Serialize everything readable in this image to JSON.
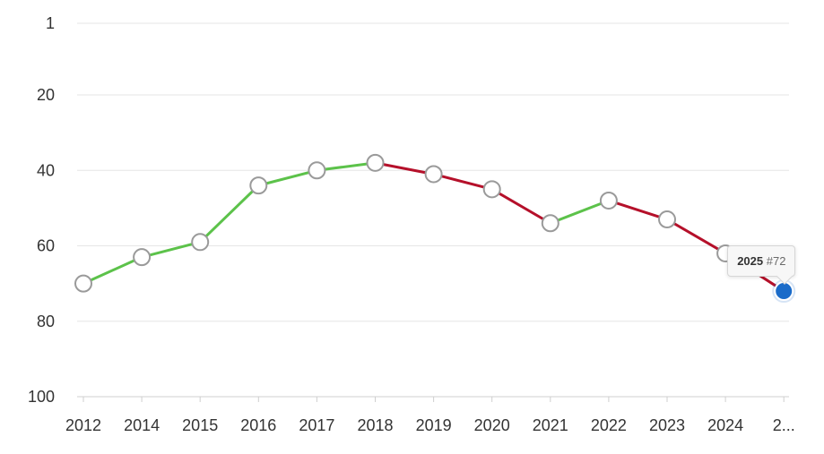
{
  "chart_data": {
    "type": "line",
    "title": "",
    "xlabel": "",
    "ylabel": "",
    "y_inverted": true,
    "ylim": [
      1,
      100
    ],
    "y_ticks": [
      "1",
      "20",
      "40",
      "60",
      "80",
      "100"
    ],
    "y_tick_values": [
      1,
      20,
      40,
      60,
      80,
      100
    ],
    "categories": [
      "2012",
      "2014",
      "2015",
      "2016",
      "2017",
      "2018",
      "2019",
      "2020",
      "2021",
      "2022",
      "2023",
      "2024",
      "2025"
    ],
    "x_tick_labels": [
      "2012",
      "2014",
      "2015",
      "2016",
      "2017",
      "2018",
      "2019",
      "2020",
      "2021",
      "2022",
      "2023",
      "2024",
      "2..."
    ],
    "values": [
      70,
      63,
      59,
      44,
      40,
      38,
      41,
      45,
      54,
      48,
      53,
      62,
      72
    ],
    "colors": {
      "improving": "#5cc24a",
      "declining": "#b5102a",
      "marker_fill": "#ffffff",
      "marker_stroke": "#9a9a9a",
      "highlight": "#1a6bc9",
      "grid": "#e6e6e6"
    },
    "highlight_index": 12
  },
  "tooltip": {
    "year": "2025",
    "rank": "#72"
  }
}
